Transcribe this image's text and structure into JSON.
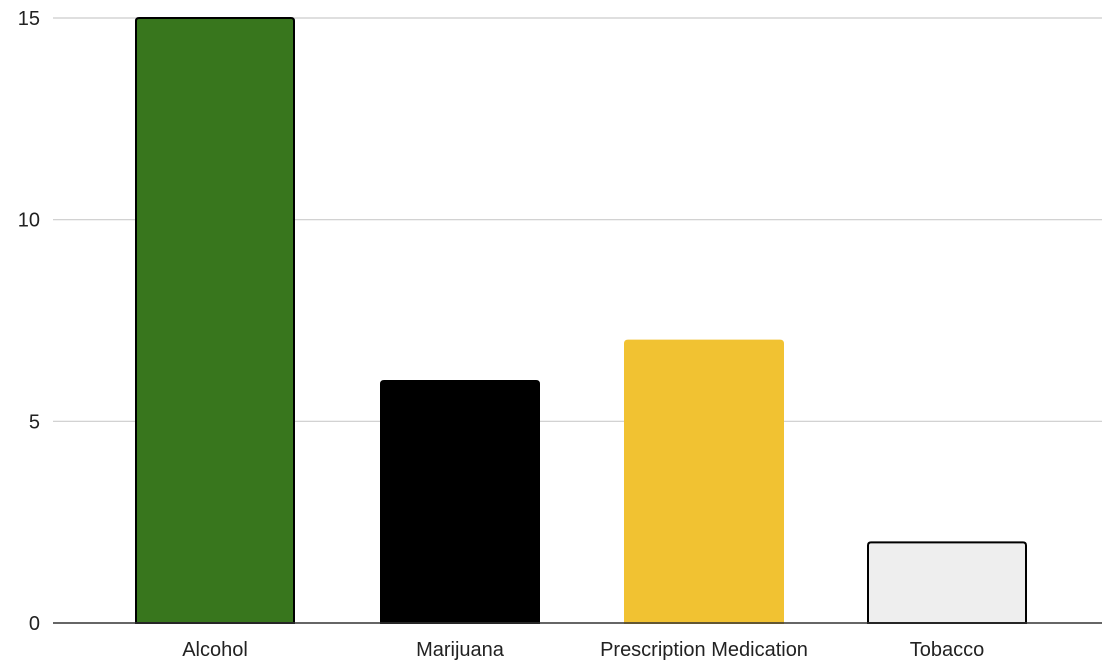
{
  "chart_data": {
    "type": "bar",
    "title": "",
    "xlabel": "",
    "ylabel": "",
    "categories": [
      "Alcohol",
      "Marijuana",
      "Prescription Medication",
      "Tobacco"
    ],
    "values": [
      15,
      6,
      7,
      2
    ],
    "bar_colors": [
      "#38761d",
      "#000000",
      "#f1c232",
      "#eeeeee"
    ],
    "bar_outline_colors": [
      "#000000",
      "#000000",
      "#f1c232",
      "#000000"
    ],
    "ylim": [
      0,
      15
    ],
    "yticks": [
      0,
      5,
      10,
      15
    ],
    "ytick_labels": [
      "0",
      "5",
      "10",
      "15"
    ],
    "grid": true,
    "legend": "none"
  }
}
